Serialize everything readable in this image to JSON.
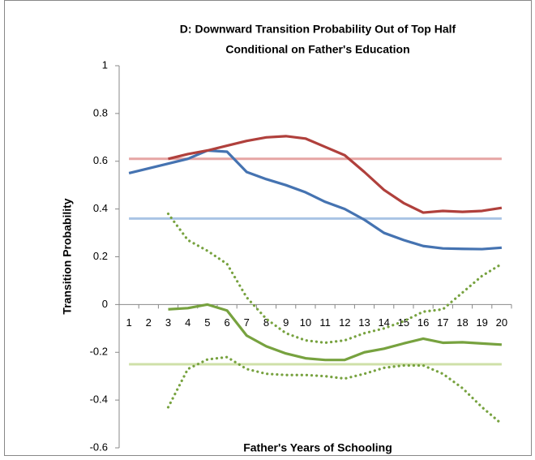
{
  "chart_data": {
    "type": "line",
    "title": [
      "D: Downward Transition Probability Out of Top Half",
      "Conditional on Father's Education"
    ],
    "x_label": "Father's Years of Schooling",
    "y_label": "Transition Probability",
    "categories": [
      "1",
      "2",
      "3",
      "4",
      "5",
      "6",
      "7",
      "8",
      "9",
      "10",
      "11",
      "12",
      "13",
      "14",
      "15",
      "16",
      "17",
      "18",
      "19",
      "20"
    ],
    "ylim": [
      -0.6,
      1
    ],
    "yticks": [
      -0.6,
      -0.4,
      -0.2,
      0,
      0.2,
      0.4,
      0.6,
      0.8,
      1
    ],
    "reference_lines": [
      {
        "value": 0.61,
        "color": "#e6a5a4"
      },
      {
        "value": 0.36,
        "color": "#a9c4e5"
      },
      {
        "value": -0.25,
        "color": "#cfe0a8"
      }
    ],
    "series": [
      {
        "color": "#4573b1",
        "style": "solid",
        "values": [
          0.55,
          0.57,
          0.59,
          0.61,
          0.645,
          0.64,
          0.555,
          0.525,
          0.5,
          0.47,
          0.43,
          0.4,
          0.355,
          0.3,
          0.27,
          0.245,
          0.235,
          0.233,
          0.232,
          0.238
        ]
      },
      {
        "color": "#b0403c",
        "style": "solid",
        "values": [
          null,
          null,
          0.61,
          0.63,
          0.645,
          0.665,
          0.685,
          0.7,
          0.705,
          0.695,
          0.66,
          0.625,
          0.555,
          0.48,
          0.425,
          0.385,
          0.392,
          0.388,
          0.392,
          0.405
        ]
      },
      {
        "color": "#77a23f",
        "style": "solid",
        "values": [
          null,
          null,
          -0.02,
          -0.015,
          0,
          -0.025,
          -0.13,
          -0.175,
          -0.205,
          -0.225,
          -0.232,
          -0.232,
          -0.2,
          -0.185,
          -0.163,
          -0.143,
          -0.16,
          -0.158,
          -0.163,
          -0.168
        ]
      },
      {
        "color": "#77a23f",
        "style": "dotted",
        "values": [
          null,
          null,
          0.38,
          0.27,
          0.225,
          0.17,
          0.03,
          -0.06,
          -0.12,
          -0.15,
          -0.16,
          -0.15,
          -0.12,
          -0.1,
          -0.07,
          -0.03,
          -0.02,
          0.05,
          0.12,
          0.17
        ]
      },
      {
        "color": "#77a23f",
        "style": "dotted",
        "values": [
          null,
          null,
          -0.43,
          -0.27,
          -0.23,
          -0.22,
          -0.27,
          -0.29,
          -0.295,
          -0.295,
          -0.3,
          -0.31,
          -0.29,
          -0.265,
          -0.255,
          -0.255,
          -0.29,
          -0.35,
          -0.43,
          -0.5
        ]
      }
    ]
  }
}
